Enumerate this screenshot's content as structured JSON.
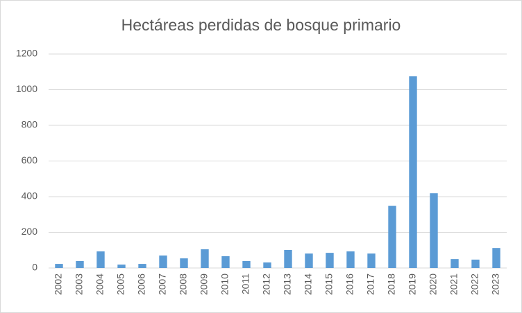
{
  "chart_data": {
    "type": "bar",
    "title": "Hectáreas perdidas de bosque primario",
    "categories": [
      "2002",
      "2003",
      "2004",
      "2005",
      "2006",
      "2007",
      "2008",
      "2009",
      "2010",
      "2011",
      "2012",
      "2013",
      "2014",
      "2015",
      "2016",
      "2017",
      "2018",
      "2019",
      "2020",
      "2021",
      "2022",
      "2023"
    ],
    "values": [
      23,
      39,
      93,
      19,
      23,
      70,
      54,
      105,
      66,
      39,
      31,
      101,
      81,
      85,
      93,
      81,
      349,
      1075,
      419,
      50,
      47,
      112
    ],
    "color": "#5b9bd5",
    "ylim": [
      0,
      1200
    ],
    "yticks": [
      0,
      200,
      400,
      600,
      800,
      1000,
      1200
    ],
    "grid": true
  }
}
